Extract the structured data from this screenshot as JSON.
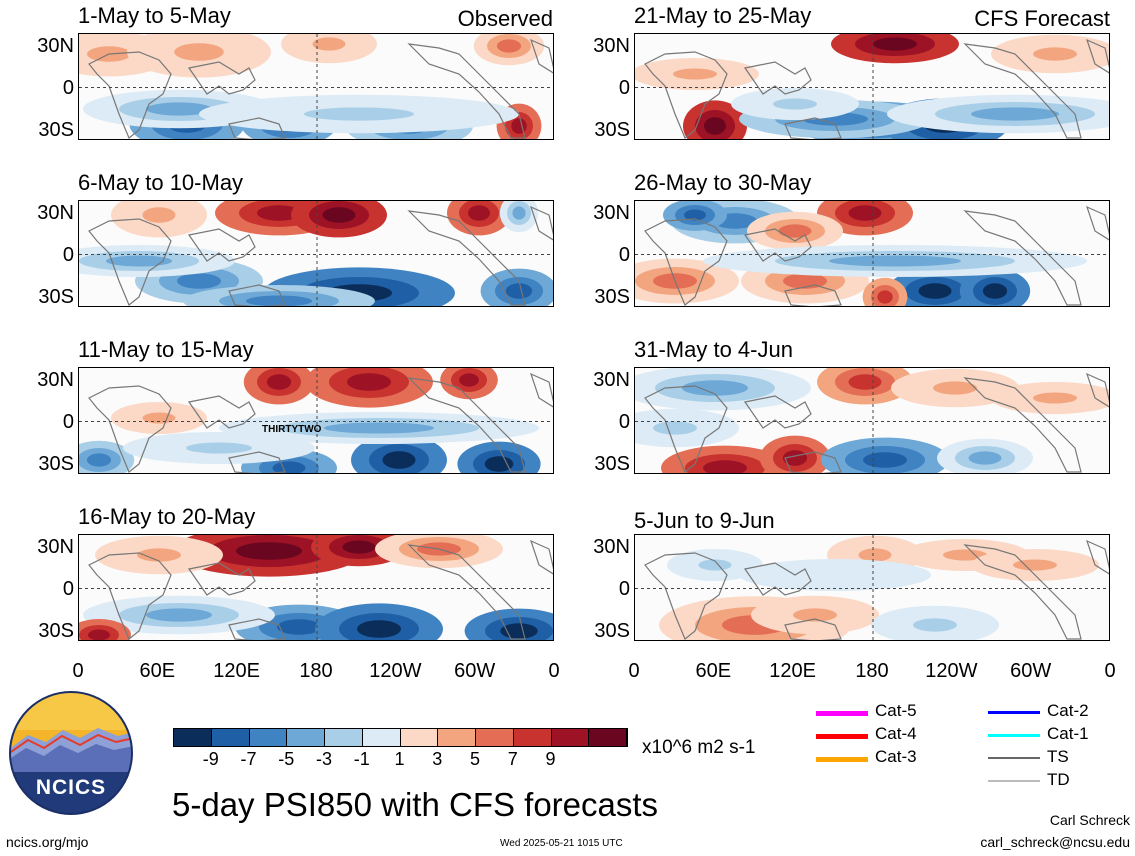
{
  "chart_data": {
    "type": "heatmap",
    "title": "5-day PSI850 with CFS forecasts",
    "variable": "PSI850",
    "units": "x10^6 m2 s-1",
    "observed_label": "Observed",
    "forecast_label": "CFS Forecast",
    "panels": [
      {
        "id": "p1",
        "title": "1-May to 5-May",
        "column": "Observed"
      },
      {
        "id": "p2",
        "title": "6-May to 10-May",
        "column": "Observed"
      },
      {
        "id": "p3",
        "title": "11-May to 15-May",
        "column": "Observed",
        "annotation": "THIRTYTWO"
      },
      {
        "id": "p4",
        "title": "16-May to 20-May",
        "column": "Observed"
      },
      {
        "id": "p5",
        "title": "21-May to 25-May",
        "column": "CFS Forecast"
      },
      {
        "id": "p6",
        "title": "26-May to 30-May",
        "column": "CFS Forecast"
      },
      {
        "id": "p7",
        "title": "31-May to 4-Jun",
        "column": "CFS Forecast"
      },
      {
        "id": "p8",
        "title": "5-Jun to 9-Jun",
        "column": "CFS Forecast"
      }
    ],
    "y_ticks": [
      "30N",
      "0",
      "30S"
    ],
    "x_ticks": [
      "0",
      "60E",
      "120E",
      "180",
      "120W",
      "60W",
      "0"
    ],
    "colorbar": {
      "ticks": [
        "-9",
        "-7",
        "-5",
        "-3",
        "-1",
        "1",
        "3",
        "5",
        "7",
        "9"
      ],
      "colors": [
        "#0b2d5a",
        "#1f5fa6",
        "#3f83c2",
        "#6ea8d6",
        "#a9cfe8",
        "#dcebf5",
        "#fbfbfb",
        "#fbd9c6",
        "#f3a57f",
        "#e46e55",
        "#c8332f",
        "#9e1226",
        "#6b0620"
      ]
    },
    "track_legend": [
      {
        "label": "Cat-5",
        "color": "#ff00ff"
      },
      {
        "label": "Cat-4",
        "color": "#ff0000"
      },
      {
        "label": "Cat-3",
        "color": "#ffa500"
      },
      {
        "label": "Cat-2",
        "color": "#0000ff"
      },
      {
        "label": "Cat-1",
        "color": "#00ffff"
      },
      {
        "label": "TS",
        "color": "#666666"
      },
      {
        "label": "TD",
        "color": "#bbbbbb"
      }
    ]
  },
  "logo": {
    "text": "NCICS"
  },
  "footer": {
    "url": "ncics.org/mjo",
    "timestamp": "Wed 2025-05-21 1015 UTC",
    "author": "Carl Schreck",
    "email": "carl_schreck@ncsu.edu"
  }
}
